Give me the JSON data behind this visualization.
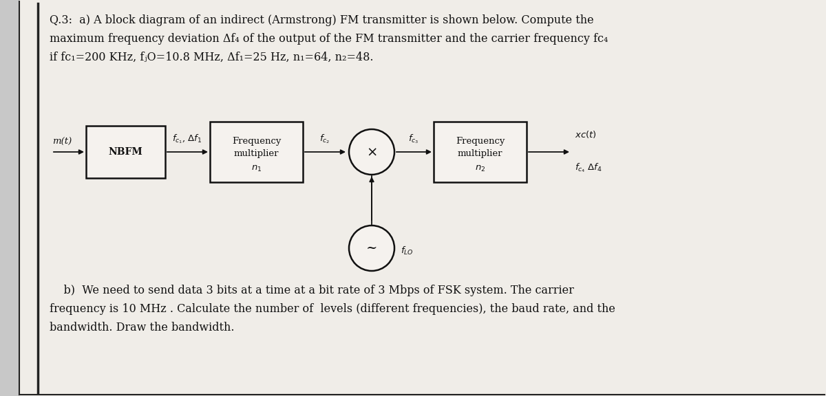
{
  "page_bg": "#c8c8c8",
  "inner_bg": "#f0ede8",
  "block_color": "#f5f2ee",
  "block_edge": "#111111",
  "arrow_color": "#111111",
  "text_color": "#111111",
  "border_color": "#222222",
  "font_size_title": 11.5,
  "font_size_labels": 9.5,
  "font_size_blocks": 10,
  "line1": "Q.3:  a) A block diagram of an indirect (Armstrong) FM transmitter is shown below. Compute the",
  "line2": "maximum frequency deviation Δf₄ of the output of the FM transmitter and the carrier frequency fc₄",
  "line3": "if fc₁=200 KHz, fⱼO=10.8 MHz, Δf₁=25 Hz, n₁=64, n₂=48.",
  "bot_line1": "    b)  We need to send data 3 bits at a time at a bit rate of 3 Mbps of FSK system. The carrier",
  "bot_line2": "frequency is 10 MHz . Calculate the number of  levels (different frequencies), the baud rate, and the",
  "bot_line3": "bandwidth. Draw the bandwidth."
}
